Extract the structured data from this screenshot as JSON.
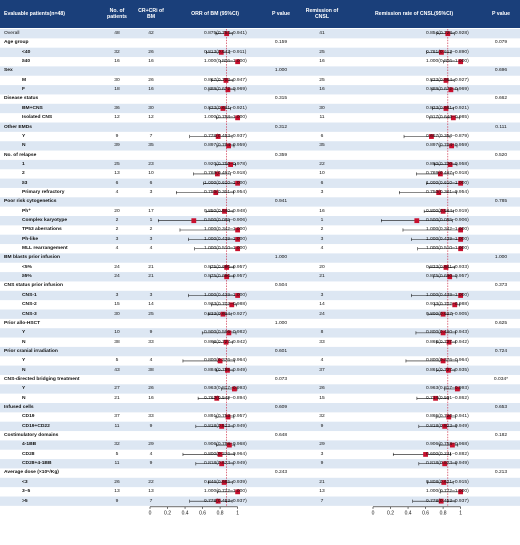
{
  "chart_data": {
    "type": "forest",
    "columns": {
      "group": "Evaluable patients(n=48)",
      "n": "No. of patients",
      "cr": "CR+CRi of BM",
      "orr": "ORR of BM (95%CI)",
      "p1": "P value",
      "rem": "Remission of CNSL",
      "rate": "Remission rate of CNSL(95%CI)",
      "p2": "P value"
    },
    "axis": {
      "ticks": [
        "0",
        "0.2",
        "0.4",
        "0.6",
        "0.8",
        "1"
      ],
      "xlim": [
        0,
        1.05
      ],
      "refline": 0.875
    },
    "axis2": {
      "ticks": [
        "0",
        "0.2",
        "0.4",
        "0.6",
        "0.8",
        "1"
      ],
      "xlim": [
        0,
        1.05
      ],
      "refline": 0.854
    },
    "rows": [
      {
        "label": "Overall",
        "kind": "head",
        "n": "48",
        "cr": "42",
        "orr": "0.875(0.753–0.941)",
        "est": 0.875,
        "lo": 0.753,
        "hi": 0.941,
        "rem": "41",
        "rate": "0.854(0.728–0.928)",
        "est2": 0.854,
        "lo2": 0.728,
        "hi2": 0.928
      },
      {
        "label": "Age group",
        "kind": "cat",
        "p1": "0.159",
        "p2": "0.079"
      },
      {
        "label": "<40",
        "kind": "sub",
        "n": "32",
        "cr": "26",
        "orr": "0.813(0.647–0.911)",
        "est": 0.813,
        "lo": 0.647,
        "hi": 0.911,
        "rem": "25",
        "rate": "0.781(0.613–0.890)",
        "est2": 0.781,
        "lo2": 0.613,
        "hi2": 0.89
      },
      {
        "label": "≥40",
        "kind": "sub",
        "n": "16",
        "cr": "16",
        "orr": "1.000(0.806–1.000)",
        "est": 1.0,
        "lo": 0.806,
        "hi": 1.0,
        "rem": "16",
        "rate": "1.000(0.806–1.000)",
        "est2": 1.0,
        "lo2": 0.806,
        "hi2": 1.0
      },
      {
        "label": "Sex",
        "kind": "cat",
        "p1": "1.000",
        "p2": "0.696"
      },
      {
        "label": "M",
        "kind": "sub",
        "n": "30",
        "cr": "26",
        "orr": "0.867(0.703–0.947)",
        "est": 0.867,
        "lo": 0.703,
        "hi": 0.947,
        "rem": "25",
        "rate": "0.833(0.664–0.927)",
        "est2": 0.833,
        "lo2": 0.664,
        "hi2": 0.927
      },
      {
        "label": "F",
        "kind": "sub",
        "n": "18",
        "cr": "16",
        "orr": "0.889(0.672–0.969)",
        "est": 0.889,
        "lo": 0.672,
        "hi": 0.969,
        "rem": "16",
        "rate": "0.889(0.672–0.969)",
        "est2": 0.889,
        "lo2": 0.672,
        "hi2": 0.969
      },
      {
        "label": "Disease status",
        "kind": "cat",
        "p1": "0.315",
        "p2": "0.662"
      },
      {
        "label": "BM+CNS",
        "kind": "sub",
        "n": "36",
        "cr": "30",
        "orr": "0.833(0.681–0.921)",
        "est": 0.833,
        "lo": 0.681,
        "hi": 0.921,
        "rem": "30",
        "rate": "0.833(0.681–0.921)",
        "est2": 0.833,
        "lo2": 0.681,
        "hi2": 0.921
      },
      {
        "label": "Isolated CNS",
        "kind": "sub",
        "n": "12",
        "cr": "12",
        "orr": "1.000(0.758–1.000)",
        "est": 1.0,
        "lo": 0.758,
        "hi": 1.0,
        "rem": "11",
        "rate": "0.917(0.646–0.985)",
        "est2": 0.917,
        "lo2": 0.646,
        "hi2": 0.985
      },
      {
        "label": "Other EMDs",
        "kind": "cat",
        "p1": "0.312",
        "p2": "0.111"
      },
      {
        "label": "Y",
        "kind": "sub",
        "n": "9",
        "cr": "7",
        "orr": "0.778(0.453–0.937)",
        "est": 0.778,
        "lo": 0.453,
        "hi": 0.937,
        "rem": "6",
        "rate": "0.667(0.354–0.879)",
        "est2": 0.667,
        "lo2": 0.354,
        "hi2": 0.879
      },
      {
        "label": "N",
        "kind": "sub",
        "n": "39",
        "cr": "35",
        "orr": "0.897(0.764–0.959)",
        "est": 0.897,
        "lo": 0.764,
        "hi": 0.959,
        "rem": "35",
        "rate": "0.897(0.764–0.959)",
        "est2": 0.897,
        "lo2": 0.764,
        "hi2": 0.959
      },
      {
        "label": "No. of relapse",
        "kind": "cat",
        "p1": "0.359",
        "p2": "0.520"
      },
      {
        "label": "1",
        "kind": "sub",
        "n": "25",
        "cr": "23",
        "orr": "0.920(0.750–0.978)",
        "est": 0.92,
        "lo": 0.75,
        "hi": 0.978,
        "rem": "22",
        "rate": "0.880(0.700–0.958)",
        "est2": 0.88,
        "lo2": 0.7,
        "hi2": 0.958
      },
      {
        "label": "2",
        "kind": "sub",
        "n": "13",
        "cr": "10",
        "orr": "0.769(0.497–0.918)",
        "est": 0.769,
        "lo": 0.497,
        "hi": 0.918,
        "rem": "10",
        "rate": "0.769(0.497–0.918)",
        "est2": 0.769,
        "lo2": 0.497,
        "hi2": 0.918
      },
      {
        "label": "≥3",
        "kind": "sub",
        "n": "6",
        "cr": "6",
        "orr": "1.000(0.610–1.000)",
        "est": 1.0,
        "lo": 0.61,
        "hi": 1.0,
        "rem": "6",
        "rate": "1.000(0.610–1.000)",
        "est2": 1.0,
        "lo2": 0.61,
        "hi2": 1.0
      },
      {
        "label": "Primary refractory",
        "kind": "sub",
        "n": "4",
        "cr": "3",
        "orr": "0.750(0.301–0.954)",
        "est": 0.75,
        "lo": 0.301,
        "hi": 0.954,
        "rem": "3",
        "rate": "0.750(0.301–0.954)",
        "est2": 0.75,
        "lo2": 0.301,
        "hi2": 0.954
      },
      {
        "label": "Poor risk cytogenetics",
        "kind": "cat",
        "p1": "0.941",
        "p2": "0.785"
      },
      {
        "label": "Ph⁺",
        "kind": "sub",
        "n": "20",
        "cr": "17",
        "orr": "0.850(0.640–0.948)",
        "est": 0.85,
        "lo": 0.64,
        "hi": 0.948,
        "rem": "16",
        "rate": "0.800(0.584–0.919)",
        "est2": 0.8,
        "lo2": 0.584,
        "hi2": 0.919
      },
      {
        "label": "Complex karyotype",
        "kind": "sub",
        "n": "2",
        "cr": "1",
        "orr": "0.500(0.095–0.906)",
        "est": 0.5,
        "lo": 0.095,
        "hi": 0.906,
        "rem": "1",
        "rate": "0.500(0.095–0.906)",
        "est2": 0.5,
        "lo2": 0.095,
        "hi2": 0.906
      },
      {
        "label": "TP53 aberrations",
        "kind": "sub",
        "n": "2",
        "cr": "2",
        "orr": "1.000(0.342–1.000)",
        "est": 1.0,
        "lo": 0.342,
        "hi": 1.0,
        "rem": "2",
        "rate": "1.000(0.342–1.000)",
        "est2": 1.0,
        "lo2": 0.342,
        "hi2": 1.0
      },
      {
        "label": "Ph-like",
        "kind": "sub",
        "n": "3",
        "cr": "3",
        "orr": "1.000(0.439–1.000)",
        "est": 1.0,
        "lo": 0.439,
        "hi": 1.0,
        "rem": "3",
        "rate": "1.000(0.439–1.000)",
        "est2": 1.0,
        "lo2": 0.439,
        "hi2": 1.0
      },
      {
        "label": "MLL rearrangement",
        "kind": "sub",
        "n": "4",
        "cr": "4",
        "orr": "1.000(0.510–1.000)",
        "est": 1.0,
        "lo": 0.51,
        "hi": 1.0,
        "rem": "4",
        "rate": "1.000(0.510–1.000)",
        "est2": 1.0,
        "lo2": 0.51,
        "hi2": 1.0
      },
      {
        "label": "BM blasts prior infusion",
        "kind": "cat",
        "p1": "1.000",
        "p2": "1.000"
      },
      {
        "label": "<5%",
        "kind": "sub",
        "n": "24",
        "cr": "21",
        "orr": "0.875(0.690–0.957)",
        "est": 0.875,
        "lo": 0.69,
        "hi": 0.957,
        "rem": "20",
        "rate": "0.833(0.641–0.933)",
        "est2": 0.833,
        "lo2": 0.641,
        "hi2": 0.933
      },
      {
        "label": "≥5%",
        "kind": "sub",
        "n": "24",
        "cr": "21",
        "orr": "0.875(0.690–0.957)",
        "est": 0.875,
        "lo": 0.69,
        "hi": 0.957,
        "rem": "21",
        "rate": "0.875(0.690–0.957)",
        "est2": 0.875,
        "lo2": 0.69,
        "hi2": 0.957
      },
      {
        "label": "CNS status prior infusion",
        "kind": "cat",
        "p1": "0.504",
        "p2": "0.373"
      },
      {
        "label": "CNS-1",
        "kind": "sub",
        "n": "3",
        "cr": "3",
        "orr": "1.000(0.439–1.000)",
        "est": 1.0,
        "lo": 0.439,
        "hi": 1.0,
        "rem": "3",
        "rate": "1.000(0.439–1.000)",
        "est2": 1.0,
        "lo2": 0.439,
        "hi2": 1.0
      },
      {
        "label": "CNS-2",
        "kind": "sub",
        "n": "15",
        "cr": "14",
        "orr": "0.933(0.702–0.988)",
        "est": 0.933,
        "lo": 0.702,
        "hi": 0.988,
        "rem": "14",
        "rate": "0.933(0.702–0.988)",
        "est2": 0.933,
        "lo2": 0.702,
        "hi2": 0.988
      },
      {
        "label": "CNS-3",
        "kind": "sub",
        "n": "30",
        "cr": "25",
        "orr": "0.833(0.664–0.927)",
        "est": 0.833,
        "lo": 0.664,
        "hi": 0.927,
        "rem": "24",
        "rate": "0.800(0.627–0.905)",
        "est2": 0.8,
        "lo2": 0.627,
        "hi2": 0.905
      },
      {
        "label": "Prior allo-HSCT",
        "kind": "cat",
        "p1": "1.000",
        "p2": "0.625"
      },
      {
        "label": "Y",
        "kind": "sub",
        "n": "10",
        "cr": "9",
        "orr": "0.900(0.596–0.982)",
        "est": 0.9,
        "lo": 0.596,
        "hi": 0.982,
        "rem": "8",
        "rate": "0.800(0.490–0.943)",
        "est2": 0.8,
        "lo2": 0.49,
        "hi2": 0.943
      },
      {
        "label": "N",
        "kind": "sub",
        "n": "38",
        "cr": "33",
        "orr": "0.868(0.727–0.942)",
        "est": 0.868,
        "lo": 0.727,
        "hi": 0.942,
        "rem": "33",
        "rate": "0.868(0.727–0.942)",
        "est2": 0.868,
        "lo2": 0.727,
        "hi2": 0.942
      },
      {
        "label": "Prior cranial irradiation",
        "kind": "cat",
        "p1": "0.601",
        "p2": "0.724"
      },
      {
        "label": "Y",
        "kind": "sub",
        "n": "5",
        "cr": "4",
        "orr": "0.800(0.376–0.964)",
        "est": 0.8,
        "lo": 0.376,
        "hi": 0.964,
        "rem": "4",
        "rate": "0.800(0.376–0.964)",
        "est2": 0.8,
        "lo2": 0.376,
        "hi2": 0.964
      },
      {
        "label": "N",
        "kind": "sub",
        "n": "43",
        "cr": "38",
        "orr": "0.884(0.755–0.949)",
        "est": 0.884,
        "lo": 0.755,
        "hi": 0.949,
        "rem": "37",
        "rate": "0.861(0.727–0.935)",
        "est2": 0.861,
        "lo2": 0.727,
        "hi2": 0.935
      },
      {
        "label": "CNS-directed bridging treatment",
        "kind": "cat",
        "p1": "0.073",
        "p2": "0.034*"
      },
      {
        "label": "Y",
        "kind": "sub",
        "n": "27",
        "cr": "26",
        "orr": "0.963(0.817–0.993)",
        "est": 0.963,
        "lo": 0.817,
        "hi": 0.993,
        "rem": "26",
        "rate": "0.963(0.817–0.993)",
        "est2": 0.963,
        "lo2": 0.817,
        "hi2": 0.993
      },
      {
        "label": "N",
        "kind": "sub",
        "n": "21",
        "cr": "16",
        "orr": "0.762(0.549–0.894)",
        "est": 0.762,
        "lo": 0.549,
        "hi": 0.894,
        "rem": "15",
        "rate": "0.714(0.501–0.862)",
        "est2": 0.714,
        "lo2": 0.501,
        "hi2": 0.862
      },
      {
        "label": "Infused cells",
        "kind": "cat",
        "p1": "0.609",
        "p2": "0.653"
      },
      {
        "label": "CD19",
        "kind": "sub",
        "n": "37",
        "cr": "33",
        "orr": "0.891(0.753–0.957)",
        "est": 0.891,
        "lo": 0.753,
        "hi": 0.957,
        "rem": "32",
        "rate": "0.865(0.720–0.941)",
        "est2": 0.865,
        "lo2": 0.72,
        "hi2": 0.941
      },
      {
        "label": "CD19+CD22",
        "kind": "sub",
        "n": "11",
        "cr": "9",
        "orr": "0.818(0.523–0.949)",
        "est": 0.818,
        "lo": 0.523,
        "hi": 0.949,
        "rem": "9",
        "rate": "0.818(0.523–0.949)",
        "est2": 0.818,
        "lo2": 0.523,
        "hi2": 0.949
      },
      {
        "label": "Costimulatory domains",
        "kind": "cat",
        "p1": "0.648",
        "p2": "0.182"
      },
      {
        "label": "4-1BB",
        "kind": "sub",
        "n": "32",
        "cr": "29",
        "orr": "0.906(0.758–0.968)",
        "est": 0.906,
        "lo": 0.758,
        "hi": 0.968,
        "rem": "29",
        "rate": "0.906(0.758–0.968)",
        "est2": 0.906,
        "lo2": 0.758,
        "hi2": 0.968
      },
      {
        "label": "CD28",
        "kind": "sub",
        "n": "5",
        "cr": "4",
        "orr": "0.800(0.376–0.964)",
        "est": 0.8,
        "lo": 0.376,
        "hi": 0.964,
        "rem": "3",
        "rate": "0.600(0.231–0.882)",
        "est2": 0.6,
        "lo2": 0.231,
        "hi2": 0.882
      },
      {
        "label": "CD28+4-1BB",
        "kind": "sub",
        "n": "11",
        "cr": "9",
        "orr": "0.818(0.523–0.949)",
        "est": 0.818,
        "lo": 0.523,
        "hi": 0.949,
        "rem": "9",
        "rate": "0.818(0.523–0.949)",
        "est2": 0.818,
        "lo2": 0.523,
        "hi2": 0.949
      },
      {
        "label": "Average dose (×10⁶/Kg)",
        "kind": "cat",
        "p1": "0.243",
        "p2": "0.213"
      },
      {
        "label": "<3",
        "kind": "sub",
        "n": "26",
        "cr": "22",
        "orr": "0.846(0.665–0.939)",
        "est": 0.846,
        "lo": 0.665,
        "hi": 0.939,
        "rem": "21",
        "rate": "0.808(0.621–0.915)",
        "est2": 0.808,
        "lo2": 0.621,
        "hi2": 0.915
      },
      {
        "label": "3–5",
        "kind": "sub",
        "n": "13",
        "cr": "13",
        "orr": "1.000(0.772–1.000)",
        "est": 1.0,
        "lo": 0.772,
        "hi": 1.0,
        "rem": "13",
        "rate": "1.000(0.772–1.000)",
        "est2": 1.0,
        "lo2": 0.772,
        "hi2": 1.0
      },
      {
        "label": ">5",
        "kind": "sub",
        "n": "9",
        "cr": "7",
        "orr": "0.778(0.453–0.937)",
        "est": 0.778,
        "lo": 0.453,
        "hi": 0.937,
        "rem": "7",
        "rate": "0.778(0.453–0.937)",
        "est2": 0.778,
        "lo2": 0.453,
        "hi2": 0.937
      }
    ]
  },
  "colors": {
    "header_bg": "#1a3f7a",
    "header_text": "#ffffff",
    "stripe": "#dde7f3",
    "marker": "#c8102e",
    "ci_line": "#111111",
    "refline": "#c8102e"
  }
}
